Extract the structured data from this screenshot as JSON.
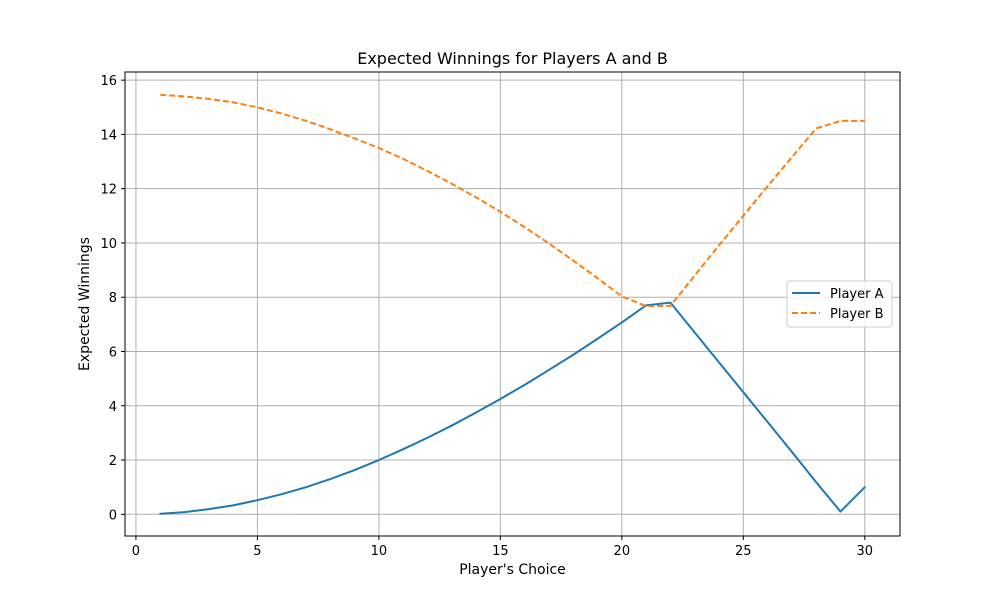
{
  "chart_data": {
    "type": "line",
    "title": "Expected Winnings for Players A and B",
    "xlabel": "Player's Choice",
    "ylabel": "Expected Winnings",
    "xlim": [
      -0.45,
      31.45
    ],
    "ylim": [
      -0.8,
      16.3
    ],
    "xticks": [
      0,
      5,
      10,
      15,
      20,
      25,
      30
    ],
    "yticks": [
      0,
      2,
      4,
      6,
      8,
      10,
      12,
      14,
      16
    ],
    "grid": true,
    "legend_position": "center-right",
    "x": [
      1,
      2,
      3,
      4,
      5,
      6,
      7,
      8,
      9,
      10,
      11,
      12,
      13,
      14,
      15,
      16,
      17,
      18,
      19,
      20,
      21,
      22,
      23,
      24,
      25,
      26,
      27,
      28,
      29,
      30
    ],
    "series": [
      {
        "name": "Player A",
        "color": "#1f77b4",
        "dash": "solid",
        "values": [
          0.02,
          0.08,
          0.19,
          0.33,
          0.52,
          0.74,
          1.0,
          1.3,
          1.63,
          2.0,
          2.4,
          2.82,
          3.27,
          3.75,
          4.25,
          4.77,
          5.32,
          5.88,
          6.47,
          7.07,
          7.7,
          7.8,
          6.7,
          5.6,
          4.5,
          3.4,
          2.3,
          1.18,
          0.1,
          1.0
        ]
      },
      {
        "name": "Player B",
        "color": "#ff7f0e",
        "dash": "dashed",
        "values": [
          15.46,
          15.4,
          15.31,
          15.18,
          15.0,
          14.77,
          14.5,
          14.19,
          13.85,
          13.5,
          13.1,
          12.65,
          12.18,
          11.68,
          11.15,
          10.58,
          9.98,
          9.35,
          8.7,
          8.03,
          7.67,
          7.68,
          8.8,
          9.91,
          11.0,
          12.09,
          13.16,
          14.22,
          14.5,
          14.5
        ]
      }
    ]
  }
}
